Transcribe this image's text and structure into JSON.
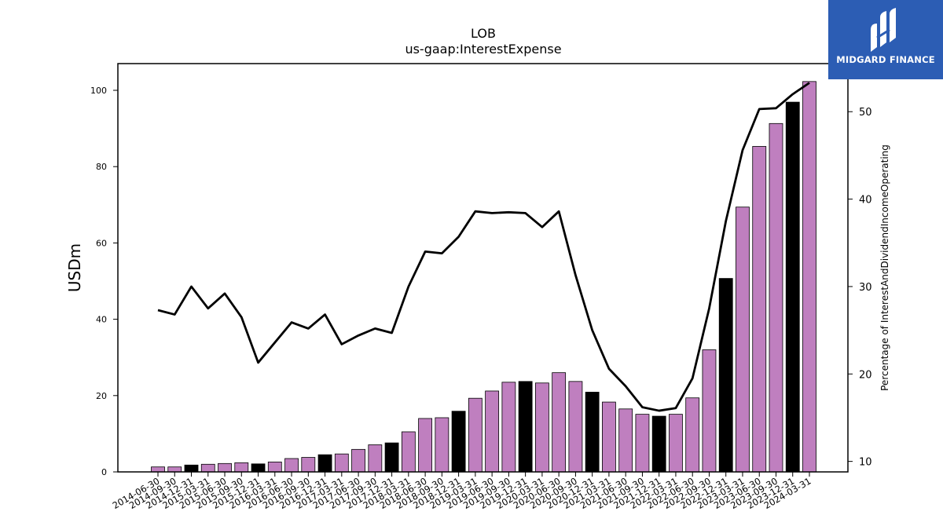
{
  "chart_data": {
    "type": "bar",
    "title": "LOB",
    "subtitle": "us-gaap:InterestExpense",
    "ylabel": "USDm",
    "ylabel_right": "Percentage of InterestAndDividendIncomeOperating",
    "ylim": [
      0,
      107
    ],
    "ylim_right": [
      8.8,
      55.5
    ],
    "yticks": [
      0,
      20,
      40,
      60,
      80,
      100
    ],
    "yticks_right": [
      10,
      20,
      30,
      40,
      50
    ],
    "categories": [
      "2014-06-30",
      "2014-09-30",
      "2014-12-31",
      "2015-03-31",
      "2015-06-30",
      "2015-09-30",
      "2015-12-31",
      "2016-03-31",
      "2016-06-30",
      "2016-09-30",
      "2016-12-31",
      "2017-03-31",
      "2017-06-30",
      "2017-09-30",
      "2017-12-31",
      "2018-03-31",
      "2018-06-30",
      "2018-09-30",
      "2018-12-31",
      "2019-03-31",
      "2019-06-30",
      "2019-09-30",
      "2019-12-31",
      "2020-03-31",
      "2020-06-30",
      "2020-09-30",
      "2020-12-31",
      "2021-03-31",
      "2021-06-30",
      "2021-09-30",
      "2021-12-31",
      "2022-03-31",
      "2022-06-30",
      "2022-09-30",
      "2022-12-31",
      "2023-03-31",
      "2023-06-30",
      "2023-09-30",
      "2023-12-31",
      "2024-03-31"
    ],
    "values": [
      1.3,
      1.3,
      1.8,
      2.0,
      2.2,
      2.4,
      2.1,
      2.6,
      3.5,
      3.8,
      4.5,
      4.7,
      5.9,
      7.1,
      7.6,
      10.5,
      14.0,
      14.2,
      15.9,
      19.3,
      21.2,
      23.5,
      23.7,
      23.3,
      26.0,
      23.7,
      20.9,
      18.3,
      16.5,
      15.1,
      14.6,
      15.1,
      19.4,
      32.0,
      50.7,
      69.4,
      85.3,
      91.3,
      96.9,
      102.3
    ],
    "bar_colors": [
      "#bf7fbf",
      "#bf7fbf",
      "#000000",
      "#bf7fbf",
      "#bf7fbf",
      "#bf7fbf",
      "#000000",
      "#bf7fbf",
      "#bf7fbf",
      "#bf7fbf",
      "#000000",
      "#bf7fbf",
      "#bf7fbf",
      "#bf7fbf",
      "#000000",
      "#bf7fbf",
      "#bf7fbf",
      "#bf7fbf",
      "#000000",
      "#bf7fbf",
      "#bf7fbf",
      "#bf7fbf",
      "#000000",
      "#bf7fbf",
      "#bf7fbf",
      "#bf7fbf",
      "#000000",
      "#bf7fbf",
      "#bf7fbf",
      "#bf7fbf",
      "#000000",
      "#bf7fbf",
      "#bf7fbf",
      "#bf7fbf",
      "#000000",
      "#bf7fbf",
      "#bf7fbf",
      "#bf7fbf",
      "#000000",
      "#bf7fbf"
    ],
    "line_values": [
      27.3,
      26.8,
      30.0,
      27.5,
      29.2,
      26.5,
      21.3,
      23.6,
      25.9,
      25.2,
      26.8,
      23.4,
      24.4,
      25.2,
      24.7,
      30.0,
      34.0,
      33.8,
      35.7,
      38.6,
      38.4,
      38.5,
      38.4,
      36.8,
      38.6,
      31.3,
      25.0,
      20.6,
      18.6,
      16.2,
      15.8,
      16.1,
      19.5,
      27.5,
      37.5,
      45.6,
      50.3,
      50.4,
      52.0,
      53.3
    ],
    "grid": false,
    "legend": "none",
    "colors": {
      "bar_main": "#bf7fbf",
      "bar_q4": "#000000",
      "line": "#000000"
    }
  },
  "logo": {
    "text": "MIDGARD FINANCE",
    "background": "#2c5db4"
  }
}
